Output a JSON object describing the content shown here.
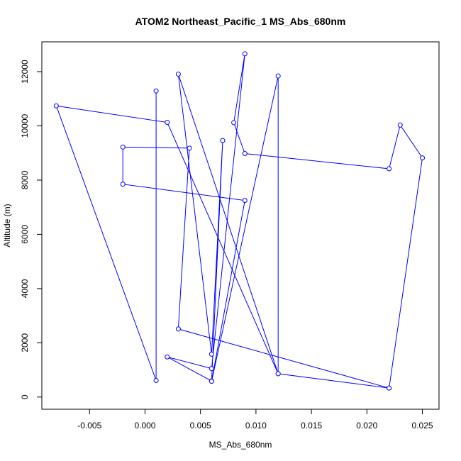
{
  "chart_data": {
    "type": "line",
    "title": "ATOM2 Northeast_Pacific_1 MS_Abs_680nm",
    "xlabel": "MS_Abs_680nm",
    "ylabel": "Altitude (m)",
    "xlim": [
      -0.0093,
      0.0265
    ],
    "ylim": [
      -450,
      13100
    ],
    "x_ticks": [
      {
        "value": -0.005,
        "label": "-0.005"
      },
      {
        "value": 0.0,
        "label": "0.000"
      },
      {
        "value": 0.005,
        "label": "0.005"
      },
      {
        "value": 0.01,
        "label": "0.010"
      },
      {
        "value": 0.015,
        "label": "0.015"
      },
      {
        "value": 0.02,
        "label": "0.020"
      },
      {
        "value": 0.025,
        "label": "0.025"
      }
    ],
    "y_ticks": [
      {
        "value": 0,
        "label": "0"
      },
      {
        "value": 2000,
        "label": "2000"
      },
      {
        "value": 4000,
        "label": "4000"
      },
      {
        "value": 6000,
        "label": "6000"
      },
      {
        "value": 8000,
        "label": "8000"
      },
      {
        "value": 10000,
        "label": "10000"
      },
      {
        "value": 12000,
        "label": "12000"
      }
    ],
    "grid": false,
    "series": [
      {
        "color": "#0000ff",
        "marker": "open-circle",
        "x": [
          0.022,
          0.025,
          0.023,
          0.022,
          0.009,
          0.008,
          0.009,
          0.006,
          0.002,
          0.006,
          0.009,
          -0.002,
          -0.002,
          0.004,
          0.003,
          0.022,
          0.012,
          0.012,
          0.006,
          0.007,
          0.006,
          0.003,
          0.012,
          0.002,
          -0.008,
          0.001,
          0.001
        ],
        "y": [
          330,
          8820,
          10030,
          8420,
          8980,
          10120,
          12660,
          1050,
          1480,
          590,
          7250,
          7850,
          9220,
          9180,
          2510,
          330,
          860,
          11840,
          580,
          9460,
          1580,
          11910,
          860,
          10130,
          10740,
          610,
          11290
        ]
      }
    ]
  }
}
